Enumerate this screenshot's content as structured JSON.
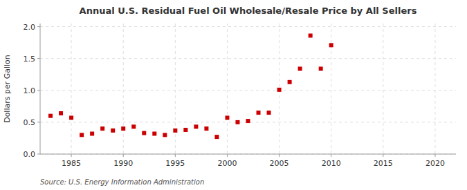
{
  "chart_data": {
    "type": "scatter",
    "title": "Annual U.S. Residual Fuel Oil Wholesale/Resale Price by All Sellers",
    "y_label": "Dollars per Gallon",
    "annotations": [
      "Source: U.S. Energy Information Administration"
    ],
    "x": [
      1983,
      1984,
      1985,
      1986,
      1987,
      1988,
      1989,
      1990,
      1991,
      1992,
      1993,
      1994,
      1995,
      1996,
      1997,
      1998,
      1999,
      2000,
      2001,
      2002,
      2003,
      2004,
      2005,
      2006,
      2007,
      2008,
      2009,
      2010
    ],
    "values": [
      0.6,
      0.64,
      0.57,
      0.3,
      0.32,
      0.4,
      0.37,
      0.4,
      0.43,
      0.33,
      0.32,
      0.3,
      0.37,
      0.38,
      0.43,
      0.4,
      0.27,
      0.57,
      0.5,
      0.52,
      0.65,
      0.65,
      1.01,
      1.13,
      1.34,
      1.86,
      1.34,
      1.71
    ],
    "color": "#cc0000",
    "marker": "square",
    "xlim": [
      1982,
      2022
    ],
    "ylim": [
      0.0,
      2.05
    ],
    "xticks": [
      1985,
      1990,
      1995,
      2000,
      2005,
      2010,
      2015,
      2020
    ],
    "yticks": [
      {
        "value": 0.0,
        "label": "0.0"
      },
      0.5,
      {
        "value": 1.0,
        "label": "1.0"
      },
      1.5,
      {
        "value": 2.0,
        "label": "2.0"
      }
    ],
    "grid": true
  }
}
